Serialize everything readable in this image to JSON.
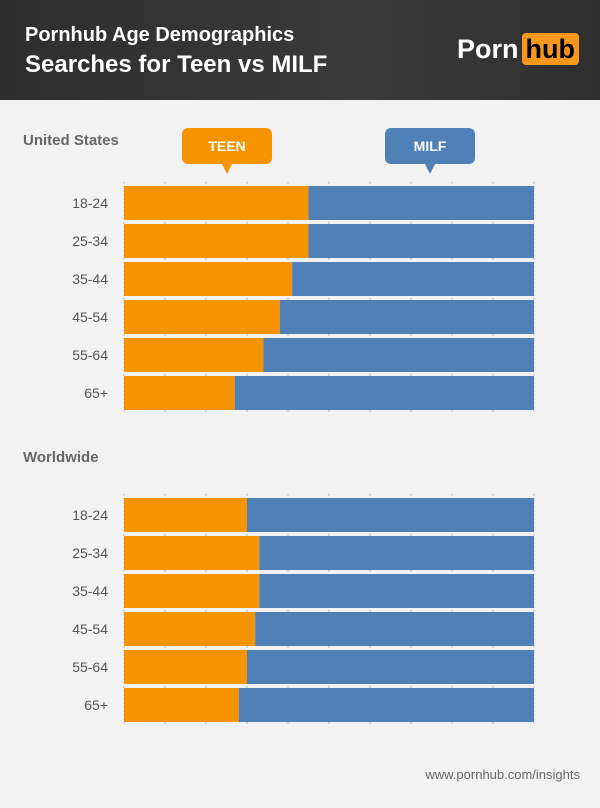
{
  "header": {
    "title": "Pornhub Age Demographics",
    "subtitle": "Searches for Teen vs MILF",
    "logo_left": "Porn",
    "logo_right": "hub"
  },
  "footer": "www.pornhub.com/insights",
  "colors": {
    "teen": "#f59300",
    "milf": "#5080b8",
    "header": "#333333"
  },
  "chart_data": [
    {
      "type": "bar",
      "stacked": true,
      "orientation": "horizontal",
      "title": "United States",
      "categories": [
        "18-24",
        "25-34",
        "35-44",
        "45-54",
        "55-64",
        "65+"
      ],
      "xlim": [
        0,
        100
      ],
      "grid": true,
      "series": [
        {
          "name": "TEEN",
          "values": [
            45,
            45,
            41,
            38,
            34,
            27
          ]
        },
        {
          "name": "MILF",
          "values": [
            55,
            55,
            59,
            62,
            66,
            73
          ]
        }
      ]
    },
    {
      "type": "bar",
      "stacked": true,
      "orientation": "horizontal",
      "title": "Worldwide",
      "categories": [
        "18-24",
        "25-34",
        "35-44",
        "45-54",
        "55-64",
        "65+"
      ],
      "xlim": [
        0,
        100
      ],
      "grid": true,
      "series": [
        {
          "name": "TEEN",
          "values": [
            30,
            33,
            33,
            32,
            30,
            28
          ]
        },
        {
          "name": "MILF",
          "values": [
            70,
            67,
            67,
            68,
            70,
            72
          ]
        }
      ]
    }
  ]
}
